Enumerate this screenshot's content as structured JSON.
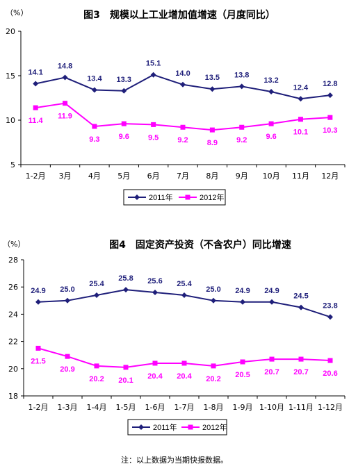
{
  "note": "注：以上数据为当期快报数据。",
  "chart_data": [
    {
      "type": "line",
      "title": "图3　规模以上工业增加值增速（月度同比）",
      "unit": "（%）",
      "categories": [
        "1-2月",
        "3月",
        "4月",
        "5月",
        "6月",
        "7月",
        "8月",
        "9月",
        "10月",
        "11月",
        "12月"
      ],
      "ylim": [
        5,
        20
      ],
      "yticks": [
        5,
        10,
        15,
        20
      ],
      "grid": false,
      "legend_position": "bottom",
      "series": [
        {
          "name": "2011年",
          "color": "#1F1F7A",
          "marker": "diamond",
          "values": [
            14.1,
            14.8,
            13.4,
            13.3,
            15.1,
            14.0,
            13.5,
            13.8,
            13.2,
            12.4,
            12.8
          ],
          "labels": [
            "14.1",
            "14.8",
            "13.4",
            "13.3",
            "15.1",
            "14.0",
            "13.5",
            "13.8",
            "13.2",
            "12.4",
            "12.8"
          ]
        },
        {
          "name": "2012年",
          "color": "#FF00FF",
          "marker": "square",
          "values": [
            11.4,
            11.9,
            9.3,
            9.6,
            9.5,
            9.2,
            8.9,
            9.2,
            9.6,
            10.1,
            10.3
          ],
          "labels": [
            "11.4",
            "11.9",
            "9.3",
            "9.6",
            "9.5",
            "9.2",
            "8.9",
            "9.2",
            "9.6",
            "10.1",
            "10.3"
          ]
        }
      ]
    },
    {
      "type": "line",
      "title": "图4　固定资产投资（不含农户）同比增速",
      "unit": "（%）",
      "categories": [
        "1-2月",
        "1-3月",
        "1-4月",
        "1-5月",
        "1-6月",
        "1-7月",
        "1-8月",
        "1-9月",
        "1-10月",
        "1-11月",
        "1-12月"
      ],
      "ylim": [
        18,
        28
      ],
      "yticks": [
        18,
        20,
        22,
        24,
        26,
        28
      ],
      "grid": false,
      "legend_position": "bottom",
      "series": [
        {
          "name": "2011年",
          "color": "#1F1F7A",
          "marker": "diamond",
          "values": [
            24.9,
            25.0,
            25.4,
            25.8,
            25.6,
            25.4,
            25.0,
            24.9,
            24.9,
            24.5,
            23.8
          ],
          "labels": [
            "24.9",
            "25.0",
            "25.4",
            "25.8",
            "25.6",
            "25.4",
            "25.0",
            "24.9",
            "24.9",
            "24.5",
            "23.8"
          ]
        },
        {
          "name": "2012年",
          "color": "#FF00FF",
          "marker": "square",
          "values": [
            21.5,
            20.9,
            20.2,
            20.1,
            20.4,
            20.4,
            20.2,
            20.5,
            20.7,
            20.7,
            20.6
          ],
          "labels": [
            "21.5",
            "20.9",
            "20.2",
            "20.1",
            "20.4",
            "20.4",
            "20.2",
            "20.5",
            "20.7",
            "20.7",
            "20.6"
          ]
        }
      ]
    }
  ]
}
